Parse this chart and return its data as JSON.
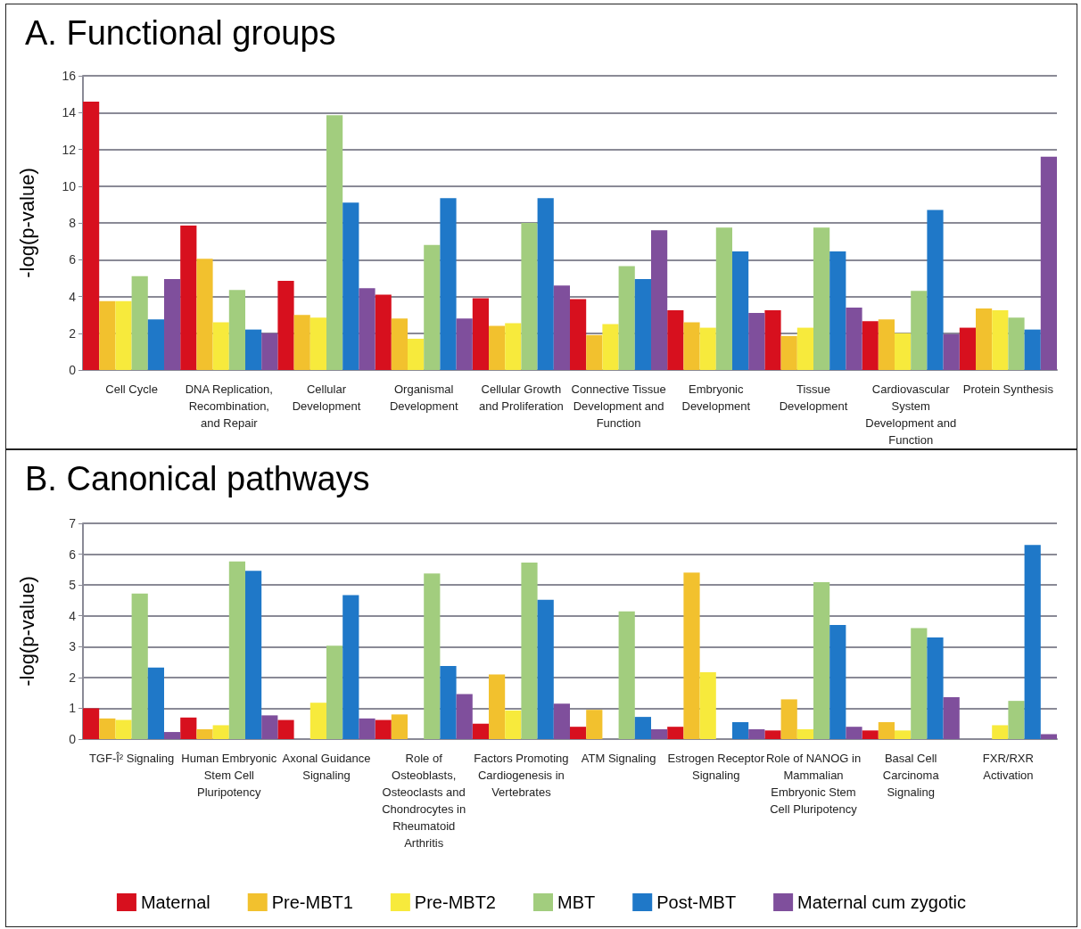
{
  "chart_data": [
    {
      "type": "bar",
      "title": "A. Functional groups",
      "ylabel": "-log(p-value)",
      "categories": [
        "Cell Cycle",
        "DNA Replication, Recombination, and Repair",
        "Cellular Development",
        "Organismal Development",
        "Cellular Growth and Proliferation",
        "Connective Tissue Development and Function",
        "Embryonic Development",
        "Tissue Development",
        "Cardiovascular System Development and Function",
        "Protein Synthesis"
      ],
      "series": [
        {
          "color": "#d7101e",
          "values": [
            14.6,
            7.85,
            4.85,
            4.1,
            3.9,
            3.85,
            3.25,
            3.25,
            2.65,
            2.3
          ]
        },
        {
          "color": "#f2c12e",
          "values": [
            3.75,
            6.05,
            3.0,
            2.8,
            2.4,
            1.9,
            2.6,
            1.85,
            2.75,
            3.35
          ]
        },
        {
          "color": "#f7ea3c",
          "values": [
            3.75,
            2.6,
            2.85,
            1.7,
            2.55,
            2.5,
            2.3,
            2.3,
            2.0,
            3.25
          ]
        },
        {
          "color": "#a2cd7e",
          "values": [
            5.1,
            4.35,
            13.85,
            6.8,
            8.0,
            5.65,
            7.75,
            7.75,
            4.3,
            2.85
          ]
        },
        {
          "color": "#1f78c8",
          "values": [
            2.75,
            2.2,
            9.1,
            9.35,
            9.35,
            4.95,
            6.45,
            6.45,
            8.7,
            2.2
          ]
        },
        {
          "color": "#7f4f9c",
          "values": [
            4.95,
            2.0,
            4.45,
            2.8,
            4.6,
            7.6,
            3.1,
            3.4,
            1.95,
            11.6
          ]
        }
      ],
      "ylim": [
        0,
        16
      ],
      "yticks": [
        0,
        2,
        4,
        6,
        8,
        10,
        12,
        14,
        16
      ],
      "grid": "y",
      "legend": false
    },
    {
      "type": "bar",
      "title": "B. Canonical pathways",
      "ylabel": "-log(p-value)",
      "categories": [
        "TGF-Î² Signaling",
        "Human Embryonic Stem Cell Pluripotency",
        "Axonal Guidance Signaling",
        "Role of Osteoblasts, Osteoclasts and Chondrocytes in Rheumatoid Arthritis",
        "Factors Promoting Cardiogenesis in Vertebrates",
        "ATM Signaling",
        "Estrogen Receptor Signaling",
        "Role of NANOG in Mammalian Embryonic Stem Cell Pluripotency",
        "Basal Cell Carcinoma Signaling",
        "FXR/RXR Activation"
      ],
      "series": [
        {
          "name": "Maternal",
          "color": "#d7101e",
          "values": [
            1.0,
            0.7,
            0.62,
            0.62,
            0.5,
            0.4,
            0.4,
            0.28,
            0.28,
            null
          ]
        },
        {
          "name": "Pre-MBT1",
          "color": "#f2c12e",
          "values": [
            0.67,
            0.32,
            null,
            0.8,
            2.1,
            0.95,
            5.4,
            1.29,
            0.55,
            null
          ]
        },
        {
          "name": "Pre-MBT2",
          "color": "#f7ea3c",
          "values": [
            0.62,
            0.45,
            1.18,
            null,
            0.93,
            null,
            2.17,
            0.32,
            0.28,
            0.45
          ]
        },
        {
          "name": "MBT",
          "color": "#a2cd7e",
          "values": [
            4.72,
            5.76,
            3.03,
            5.37,
            5.73,
            4.14,
            null,
            5.09,
            3.6,
            1.24
          ]
        },
        {
          "name": "Post-MBT",
          "color": "#1f78c8",
          "values": [
            2.32,
            5.46,
            4.67,
            2.37,
            4.52,
            0.72,
            0.55,
            3.7,
            3.3,
            6.3
          ]
        },
        {
          "name": "Maternal cum zygotic",
          "color": "#7f4f9c",
          "values": [
            0.23,
            0.77,
            0.67,
            1.46,
            1.15,
            0.32,
            0.32,
            0.4,
            1.36,
            0.16
          ]
        }
      ],
      "ylim": [
        0,
        7
      ],
      "yticks": [
        0,
        1,
        2,
        3,
        4,
        5,
        6,
        7
      ],
      "grid": "y",
      "legend": "bottom"
    }
  ]
}
